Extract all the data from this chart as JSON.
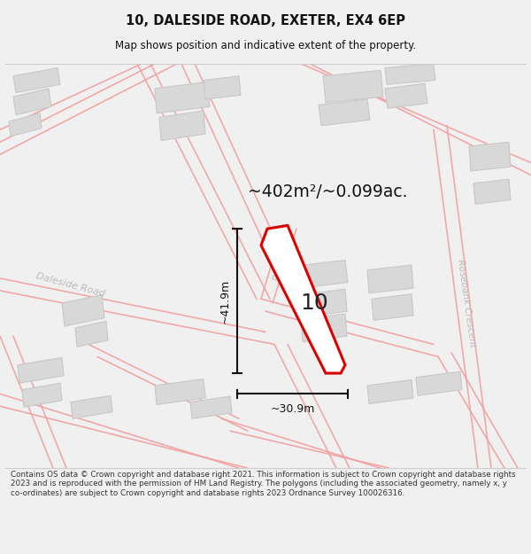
{
  "title_line1": "10, DALESIDE ROAD, EXETER, EX4 6EP",
  "title_line2": "Map shows position and indicative extent of the property.",
  "area_label": "~402m²/~0.099ac.",
  "plot_label": "10",
  "dim_vertical": "~41.9m",
  "dim_horizontal": "~30.9m",
  "disclaimer": "Contains OS data © Crown copyright and database right 2021. This information is subject to Crown copyright and database rights 2023 and is reproduced with the permission of HM Land Registry. The polygons (including the associated geometry, namely x, y co-ordinates) are subject to Crown copyright and database rights 2023 Ordnance Survey 100026316.",
  "bg_color": "#f0f0f0",
  "map_bg": "#ffffff",
  "road_color": "#f0a0a0",
  "road_lw": 1.2,
  "building_color": "#d8d8d8",
  "building_edge": "#c8c8c8",
  "plot_color": "#dd0000",
  "plot_fill": "#ffffff",
  "dim_color": "#111111",
  "street_label_color": "#bbbbbb",
  "title_color": "#111111",
  "separator_color": "#cccccc"
}
